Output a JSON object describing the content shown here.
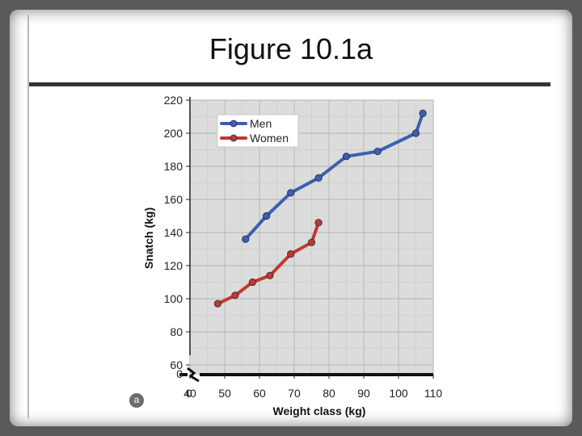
{
  "slide": {
    "title": "Figure 10.1a",
    "panel_label": "a"
  },
  "chart_data": {
    "type": "line",
    "title": "",
    "xlabel": "Weight class (kg)",
    "ylabel": "Snatch (kg)",
    "x_ticks": [
      0,
      40,
      50,
      60,
      70,
      80,
      90,
      100,
      110
    ],
    "y_ticks": [
      0,
      60,
      80,
      100,
      120,
      140,
      160,
      180,
      200,
      220
    ],
    "xlim": [
      40,
      110
    ],
    "ylim": [
      60,
      220
    ],
    "axis_break": true,
    "grid": true,
    "legend": "top-left",
    "series": [
      {
        "name": "Men",
        "color": "#3c5fb0",
        "x": [
          56,
          62,
          69,
          77,
          85,
          94,
          105,
          107
        ],
        "y": [
          136,
          150,
          164,
          173,
          186,
          189,
          200,
          212
        ]
      },
      {
        "name": "Women",
        "color": "#c0392b",
        "x": [
          48,
          53,
          58,
          63,
          69,
          75,
          77
        ],
        "y": [
          97,
          102,
          110,
          114,
          127,
          134,
          146
        ]
      }
    ]
  }
}
